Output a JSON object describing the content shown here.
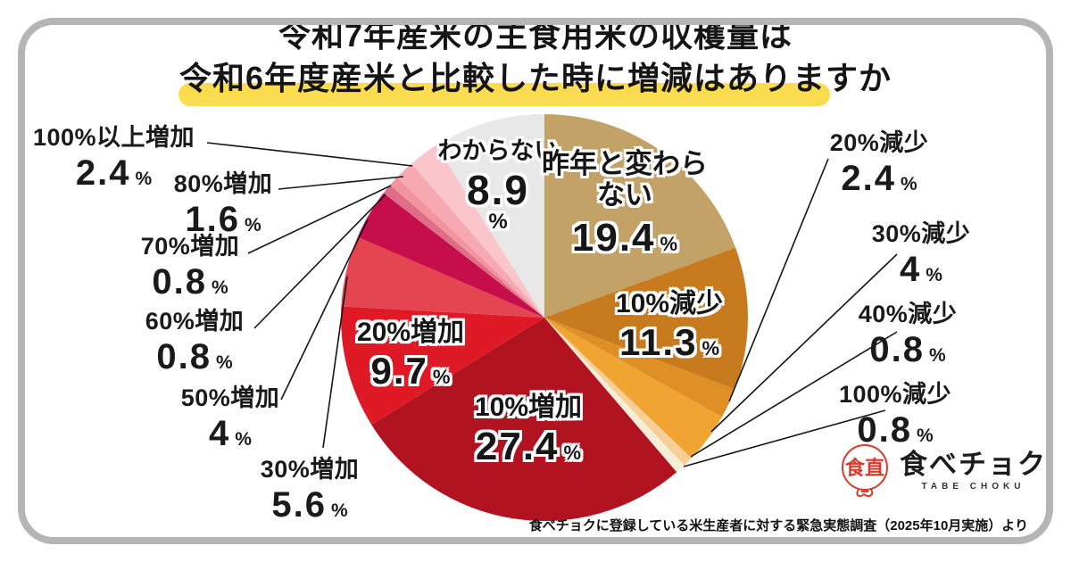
{
  "title": {
    "line1": "令和7年産米の主食用米の収穫量は",
    "line2": "令和6年度産米と比較した時に増減はありますか"
  },
  "source_note": "食べチョクに登録している米生産者に対する緊急実態調査（2025年10月実施）より",
  "logo": {
    "mark": "食直",
    "name": "食べチョク",
    "sub": "TABE CHOKU"
  },
  "colors": {
    "highlight_yellow": "#FBDC4E",
    "card_border_gray": "#B5B5B5",
    "text": "#1A1A1A",
    "logo_red": "#D93A2B"
  },
  "chart_data": {
    "type": "pie",
    "title": "令和7年産米の主食用米の収穫量は令和6年度産米と比較した時に増減はありますか",
    "unit": "%",
    "start_angle_deg": 0,
    "direction": "clockwise",
    "legend_position": "labels-on-and-around-pie",
    "slices": [
      {
        "label": "昨年と変わらない",
        "value": 19.4,
        "display": "19.4",
        "color": "#C2A266",
        "label_style": "inside"
      },
      {
        "label": "10%減少",
        "value": 11.3,
        "display": "11.3",
        "color": "#C87B1E",
        "label_style": "inside"
      },
      {
        "label": "20%減少",
        "value": 2.4,
        "display": "2.4",
        "color": "#DE8F26",
        "label_style": "callout-right"
      },
      {
        "label": "30%減少",
        "value": 4,
        "display": "4",
        "color": "#F0A431",
        "label_style": "callout-right"
      },
      {
        "label": "40%減少",
        "value": 0.8,
        "display": "0.8",
        "color": "#F8CE97",
        "label_style": "callout-right"
      },
      {
        "label": "100%減少",
        "value": 0.8,
        "display": "0.8",
        "color": "#F5EED6",
        "label_style": "callout-right"
      },
      {
        "label": "10%増加",
        "value": 27.4,
        "display": "27.4",
        "color": "#B11420",
        "label_style": "inside"
      },
      {
        "label": "20%増加",
        "value": 9.7,
        "display": "9.7",
        "color": "#DF1A26",
        "label_style": "inside"
      },
      {
        "label": "30%増加",
        "value": 5.6,
        "display": "5.6",
        "color": "#E54550",
        "label_style": "callout-left"
      },
      {
        "label": "50%増加",
        "value": 4,
        "display": "4",
        "color": "#C60E4D",
        "label_style": "callout-left"
      },
      {
        "label": "60%増加",
        "value": 0.8,
        "display": "0.8",
        "color": "#DE6E87",
        "label_style": "callout-left"
      },
      {
        "label": "70%増加",
        "value": 0.8,
        "display": "0.8",
        "color": "#F2939E",
        "label_style": "callout-left"
      },
      {
        "label": "80%増加",
        "value": 1.6,
        "display": "1.6",
        "color": "#F6A9B1",
        "label_style": "callout-left"
      },
      {
        "label": "100%以上増加",
        "value": 2.4,
        "display": "2.4",
        "color": "#FAC5CB",
        "label_style": "callout-left"
      },
      {
        "label": "わからない",
        "value": 8.9,
        "display": "8.9",
        "color": "#E9E8E8",
        "label_style": "inside"
      }
    ]
  }
}
